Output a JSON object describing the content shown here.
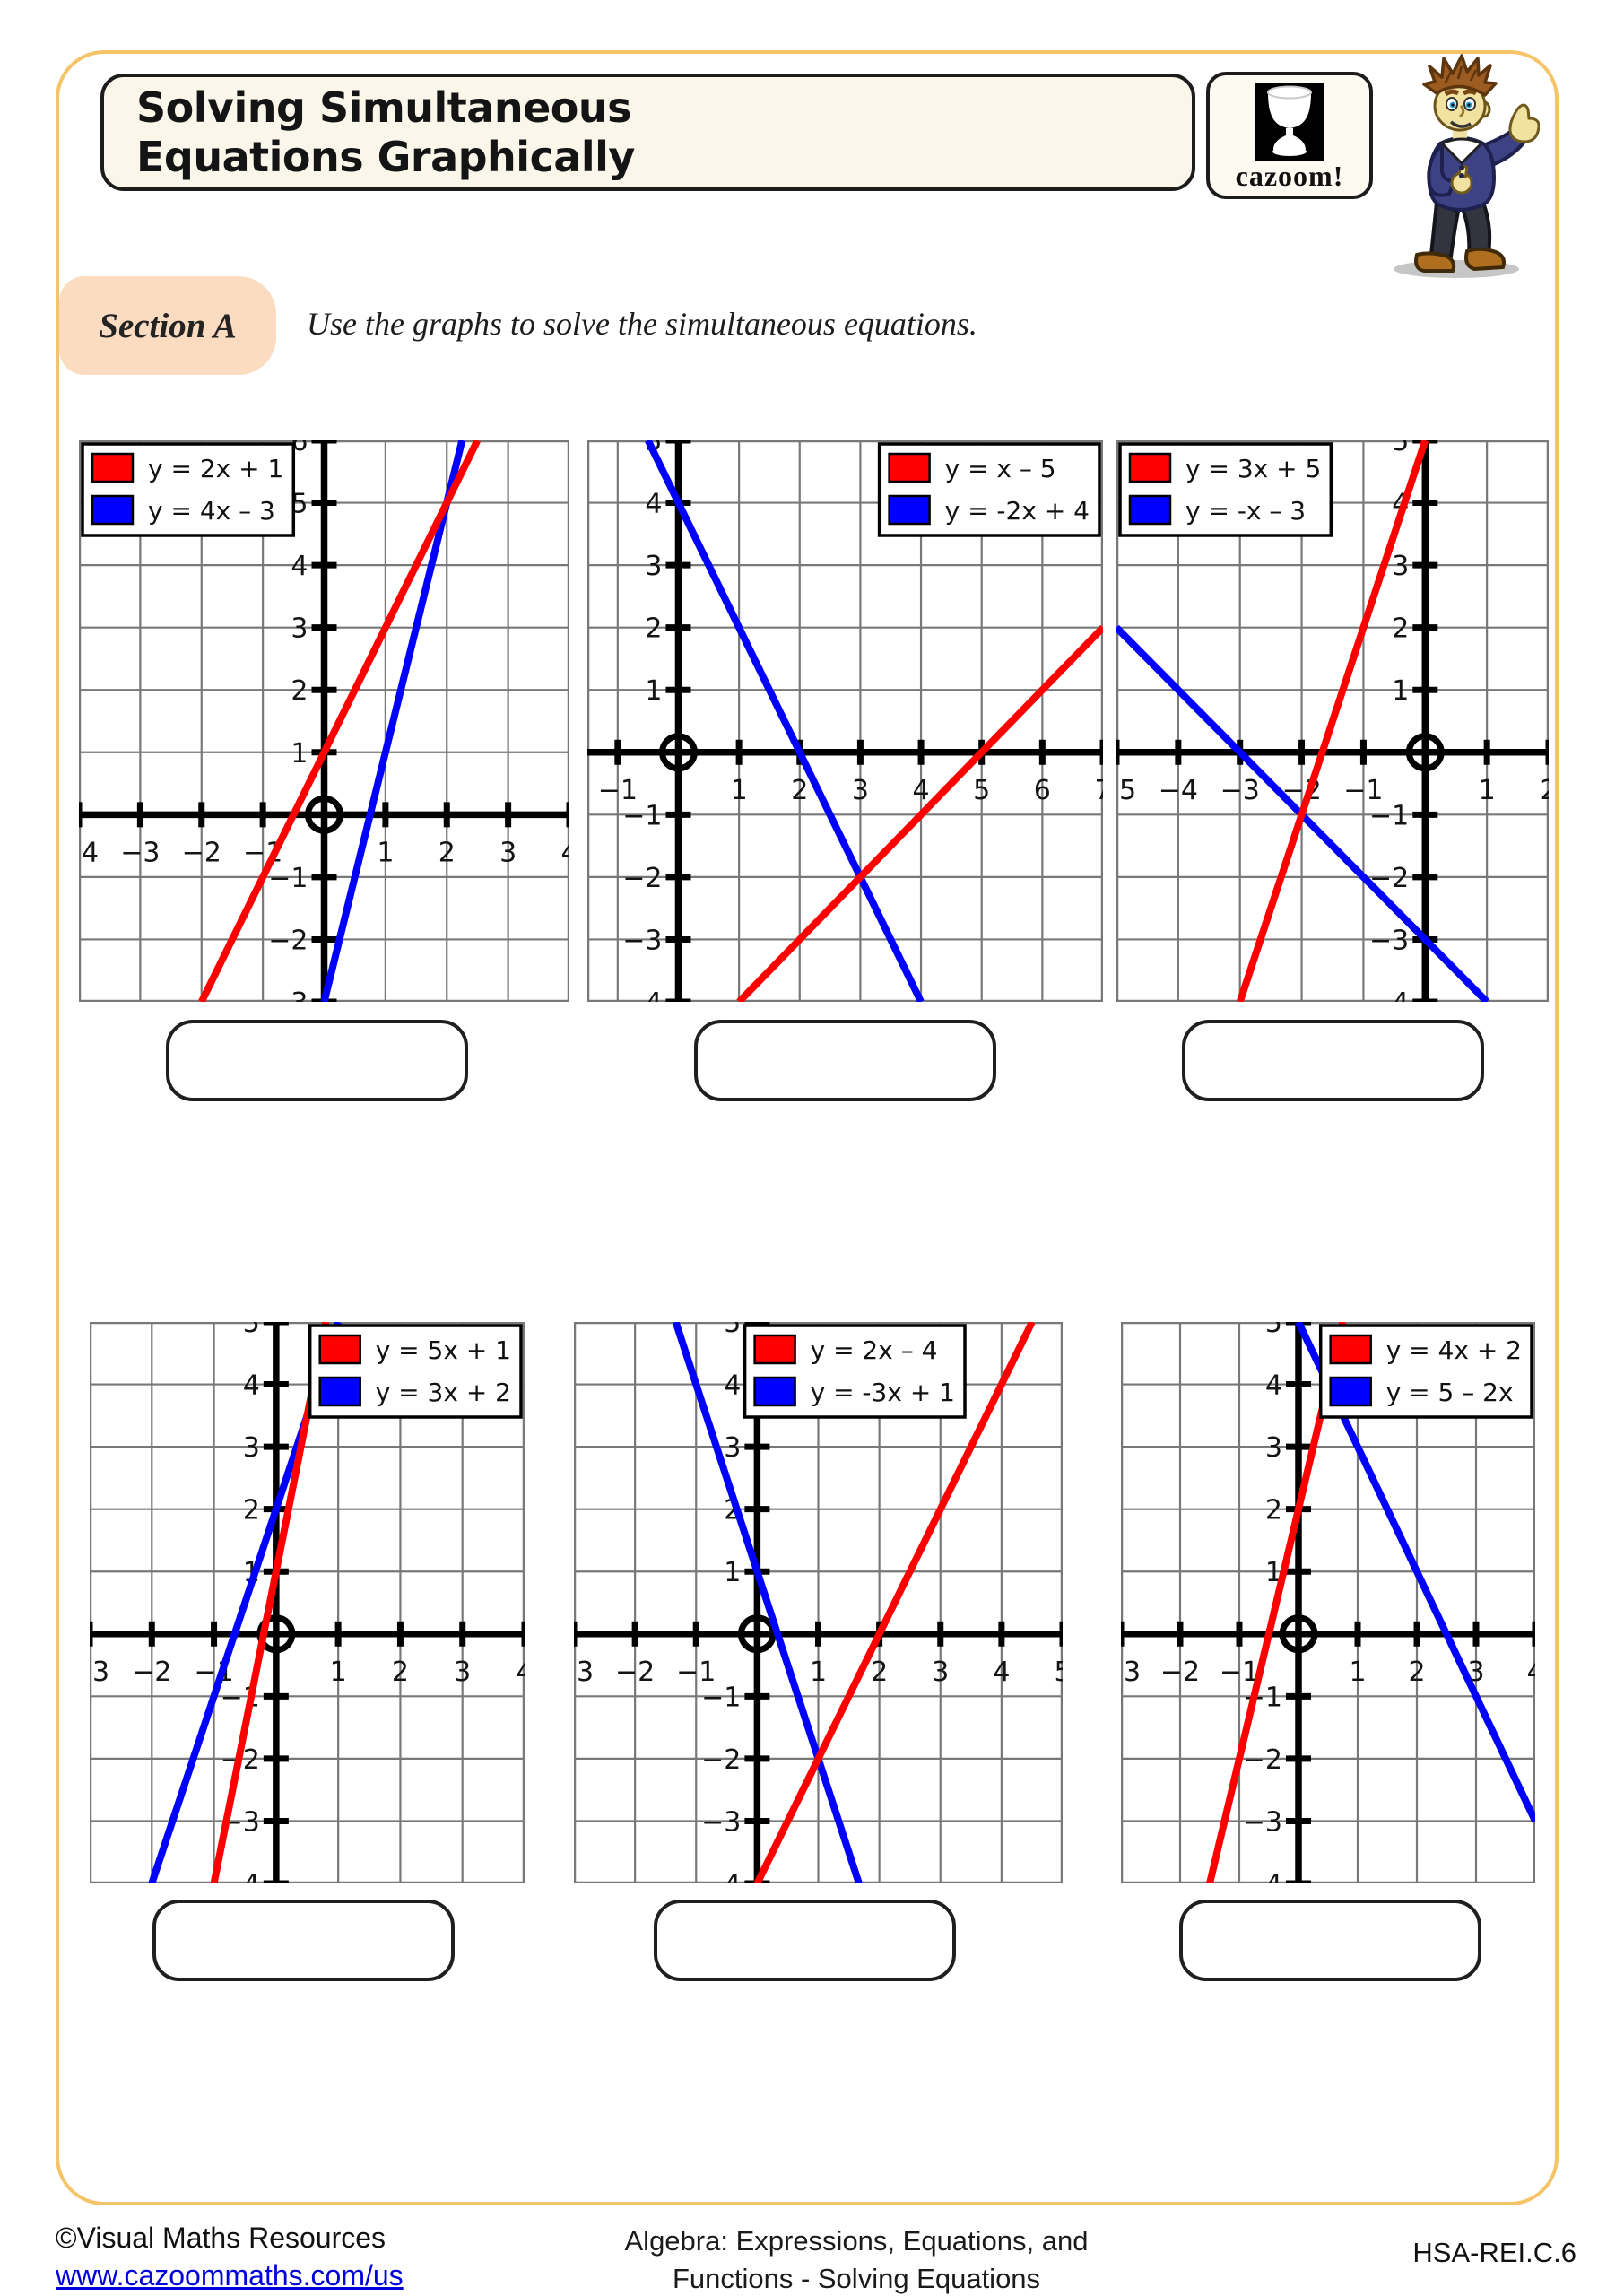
{
  "header": {
    "title_line1": "Solving Simultaneous",
    "title_line2": "Equations Graphically",
    "logo_text": "cazoom!"
  },
  "section": {
    "label": "Section A",
    "instruction": "Use the graphs to solve the simultaneous equations."
  },
  "colors": {
    "red": "#ff0000",
    "blue": "#0000ff",
    "frame": "#f5c469",
    "header_bg": "#faf6ea",
    "section_bg": "#fbdcc1",
    "grid": "#787878",
    "axis": "#000000",
    "link": "#0000dd"
  },
  "chart_data": [
    {
      "type": "line",
      "title": "",
      "xlabel": "",
      "ylabel": "",
      "x_range": [
        -4,
        4
      ],
      "y_range": [
        -3,
        6
      ],
      "grid": true,
      "series": [
        {
          "name": "y = 2x + 1",
          "color": "#ff0000",
          "slope": 2,
          "intercept": 1
        },
        {
          "name": "y = 4x – 3",
          "color": "#0000ff",
          "slope": 4,
          "intercept": -3
        }
      ],
      "intersection": [
        2,
        5
      ],
      "legend_position": "top-left"
    },
    {
      "type": "line",
      "title": "",
      "xlabel": "",
      "ylabel": "",
      "x_range": [
        -1.5,
        7
      ],
      "y_range": [
        -4,
        5
      ],
      "grid": true,
      "series": [
        {
          "name": "y = x – 5",
          "color": "#ff0000",
          "slope": 1,
          "intercept": -5
        },
        {
          "name": "y = -2x + 4",
          "color": "#0000ff",
          "slope": -2,
          "intercept": 4
        }
      ],
      "intersection": [
        3,
        -2
      ],
      "legend_position": "top-right"
    },
    {
      "type": "line",
      "title": "",
      "xlabel": "",
      "ylabel": "",
      "x_range": [
        -5,
        2
      ],
      "y_range": [
        -4,
        5
      ],
      "grid": true,
      "series": [
        {
          "name": "y = 3x + 5",
          "color": "#ff0000",
          "slope": 3,
          "intercept": 5
        },
        {
          "name": "y = -x – 3",
          "color": "#0000ff",
          "slope": -1,
          "intercept": -3
        }
      ],
      "intersection": [
        -2,
        -1
      ],
      "legend_position": "top-left"
    },
    {
      "type": "line",
      "title": "",
      "xlabel": "",
      "ylabel": "",
      "x_range": [
        -3,
        4
      ],
      "y_range": [
        -4,
        5
      ],
      "grid": true,
      "series": [
        {
          "name": "y = 5x + 1",
          "color": "#ff0000",
          "slope": 5,
          "intercept": 1
        },
        {
          "name": "y = 3x + 2",
          "color": "#0000ff",
          "slope": 3,
          "intercept": 2
        }
      ],
      "intersection": [
        0.5,
        3.5
      ],
      "legend_position": "top-right"
    },
    {
      "type": "line",
      "title": "",
      "xlabel": "",
      "ylabel": "",
      "x_range": [
        -3,
        5
      ],
      "y_range": [
        -4,
        5
      ],
      "grid": true,
      "series": [
        {
          "name": "y = 2x – 4",
          "color": "#ff0000",
          "slope": 2,
          "intercept": -4
        },
        {
          "name": "y = -3x + 1",
          "color": "#0000ff",
          "slope": -3,
          "intercept": 1
        }
      ],
      "intersection": [
        1,
        -2
      ],
      "legend_position": "top-right",
      "legend_inset": 105
    },
    {
      "type": "line",
      "title": "",
      "xlabel": "",
      "ylabel": "",
      "x_range": [
        -3,
        4
      ],
      "y_range": [
        -4,
        5
      ],
      "grid": true,
      "series": [
        {
          "name": "y = 4x + 2",
          "color": "#ff0000",
          "slope": 4,
          "intercept": 2
        },
        {
          "name": "y = 5 – 2x",
          "color": "#0000ff",
          "slope": -2,
          "intercept": 5
        }
      ],
      "intersection": [
        0.5,
        4
      ],
      "legend_position": "top-right"
    }
  ],
  "footer": {
    "copyright": "©Visual Maths Resources",
    "url": "www.cazoommaths.com/us",
    "topic_line1": "Algebra: Expressions, Equations, and",
    "topic_line2": "Functions - Solving Equations",
    "standard": "HSA-REI.C.6"
  }
}
